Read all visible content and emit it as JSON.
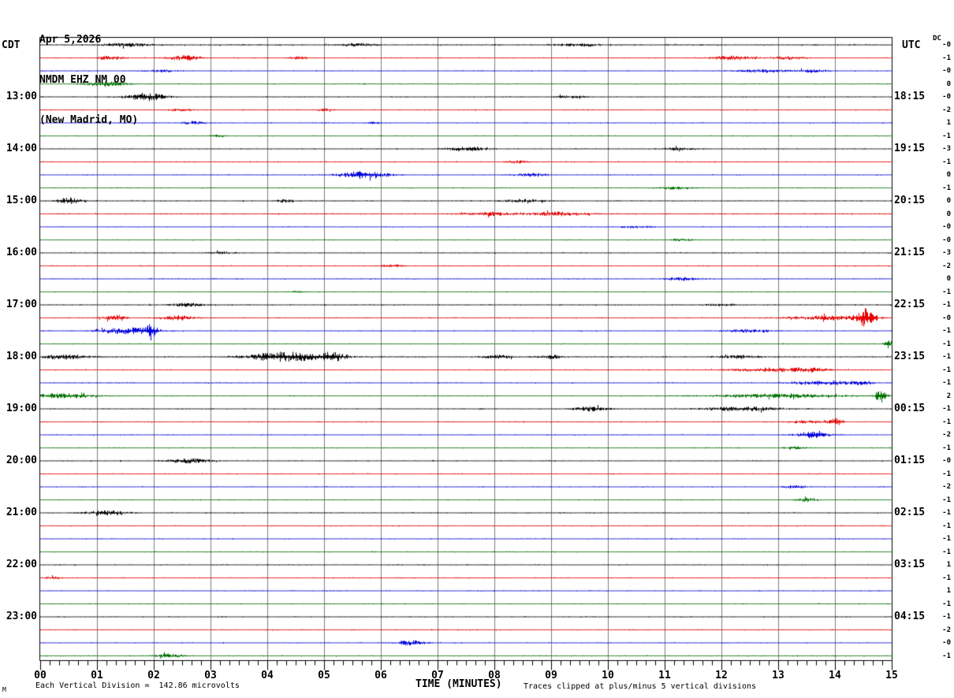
{
  "title": {
    "date": "Apr 5,2026",
    "station": "NMDM EHZ NM 00",
    "location": "(New Madrid, MO)"
  },
  "axis": {
    "left_timezone": "CDT",
    "right_timezone": "UTC",
    "dc_label": "DC",
    "x_title": "TIME (MINUTES)",
    "x_ticks": [
      "00",
      "01",
      "02",
      "03",
      "04",
      "05",
      "06",
      "07",
      "08",
      "09",
      "10",
      "11",
      "12",
      "13",
      "14",
      "15"
    ],
    "left_times": [
      {
        "row": 5,
        "label": "13:00"
      },
      {
        "row": 9,
        "label": "14:00"
      },
      {
        "row": 13,
        "label": "15:00"
      },
      {
        "row": 17,
        "label": "16:00"
      },
      {
        "row": 21,
        "label": "17:00"
      },
      {
        "row": 25,
        "label": "18:00"
      },
      {
        "row": 29,
        "label": "19:00"
      },
      {
        "row": 33,
        "label": "20:00"
      },
      {
        "row": 37,
        "label": "21:00"
      },
      {
        "row": 41,
        "label": "22:00"
      },
      {
        "row": 45,
        "label": "23:00"
      }
    ],
    "right_times": [
      {
        "row": 5,
        "label": "18:15"
      },
      {
        "row": 9,
        "label": "19:15"
      },
      {
        "row": 13,
        "label": "20:15"
      },
      {
        "row": 17,
        "label": "21:15"
      },
      {
        "row": 21,
        "label": "22:15"
      },
      {
        "row": 25,
        "label": "23:15"
      },
      {
        "row": 29,
        "label": "00:15"
      },
      {
        "row": 33,
        "label": "01:15"
      },
      {
        "row": 37,
        "label": "02:15"
      },
      {
        "row": 41,
        "label": "03:15"
      },
      {
        "row": 45,
        "label": "04:15"
      }
    ]
  },
  "footer": {
    "mark": "M",
    "scale_note": "Each Vertical Division =  142.86 microvolts",
    "clip_note": "Traces clipped at plus/minus 5 vertical divisions"
  },
  "colors": {
    "black": "#000000",
    "red": "#e60000",
    "blue": "#0000dd",
    "green": "#007000",
    "grid": "#7d7d7d",
    "frame": "#000000",
    "background": "#ffffff"
  },
  "chart_data": {
    "type": "line",
    "subtype": "helicorder-seismogram",
    "title": "NMDM EHZ NM 00 (New Madrid, MO) Apr 5,2026",
    "xlabel": "TIME (MINUTES)",
    "x_axis": {
      "min": 0,
      "max": 15,
      "major_tick_minutes": 1,
      "minor_ticks_per_major": 6
    },
    "row_layout": {
      "row_count": 48,
      "minutes_per_row": 15,
      "first_row_start_cdt": "12:00",
      "utc_offset_hours": 5,
      "color_cycle": [
        "black",
        "red",
        "blue",
        "green"
      ]
    },
    "clip_divisions": 5,
    "microvolts_per_division": 142.86,
    "events_format": "[minute_in_row, width_minutes, amplitude_px]",
    "rows": [
      {
        "color": "black",
        "dc": "-0",
        "amp": 1.3,
        "events": [
          [
            1.5,
            0.3,
            2
          ],
          [
            5.6,
            0.2,
            2
          ],
          [
            9.5,
            0.3,
            1.5
          ]
        ]
      },
      {
        "color": "red",
        "dc": "-1",
        "amp": 1.0,
        "events": [
          [
            1.25,
            0.15,
            2.5
          ],
          [
            2.55,
            0.2,
            3
          ],
          [
            4.55,
            0.1,
            2
          ],
          [
            12.2,
            0.3,
            2.5
          ],
          [
            13.2,
            0.2,
            2
          ]
        ]
      },
      {
        "color": "blue",
        "dc": "-0",
        "amp": 1.0,
        "events": [
          [
            2.1,
            0.2,
            1.5
          ],
          [
            12.7,
            0.3,
            2
          ],
          [
            13.6,
            0.2,
            2
          ]
        ]
      },
      {
        "color": "green",
        "dc": "0",
        "amp": 0.9,
        "events": [
          [
            1.15,
            0.25,
            3.5
          ]
        ]
      },
      {
        "color": "black",
        "dc": "-0",
        "amp": 1.1,
        "events": [
          [
            1.85,
            0.25,
            5
          ],
          [
            9.3,
            0.2,
            1.5
          ]
        ]
      },
      {
        "color": "red",
        "dc": "-2",
        "amp": 1.0,
        "events": [
          [
            2.5,
            0.15,
            1.5
          ],
          [
            5.0,
            0.1,
            1.5
          ]
        ]
      },
      {
        "color": "blue",
        "dc": "1",
        "amp": 0.9,
        "events": [
          [
            2.7,
            0.15,
            2
          ],
          [
            5.9,
            0.1,
            1.5
          ]
        ]
      },
      {
        "color": "green",
        "dc": "-1",
        "amp": 0.8,
        "events": [
          [
            3.1,
            0.1,
            1.2
          ]
        ]
      },
      {
        "color": "black",
        "dc": "-3",
        "amp": 1.1,
        "events": [
          [
            7.5,
            0.25,
            2.5
          ],
          [
            11.2,
            0.2,
            1.5
          ]
        ]
      },
      {
        "color": "red",
        "dc": "-1",
        "amp": 1.0,
        "events": [
          [
            8.4,
            0.15,
            1.5
          ]
        ]
      },
      {
        "color": "blue",
        "dc": "0",
        "amp": 0.9,
        "events": [
          [
            5.7,
            0.3,
            5
          ],
          [
            8.65,
            0.2,
            2.5
          ]
        ]
      },
      {
        "color": "green",
        "dc": "-1",
        "amp": 0.8,
        "events": [
          [
            11.2,
            0.2,
            2
          ]
        ]
      },
      {
        "color": "black",
        "dc": "0",
        "amp": 1.2,
        "events": [
          [
            0.5,
            0.15,
            4
          ],
          [
            4.3,
            0.1,
            2
          ],
          [
            8.5,
            0.25,
            2
          ]
        ]
      },
      {
        "color": "red",
        "dc": "0",
        "amp": 1.3,
        "events": [
          [
            7.9,
            0.3,
            2
          ],
          [
            9.1,
            0.35,
            2.5
          ]
        ]
      },
      {
        "color": "blue",
        "dc": "-0",
        "amp": 0.9,
        "events": [
          [
            10.5,
            0.2,
            1.5
          ]
        ]
      },
      {
        "color": "green",
        "dc": "-0",
        "amp": 0.8,
        "events": [
          [
            11.3,
            0.15,
            1.5
          ]
        ]
      },
      {
        "color": "black",
        "dc": "-3",
        "amp": 1.0,
        "events": [
          [
            3.2,
            0.2,
            1.5
          ]
        ]
      },
      {
        "color": "red",
        "dc": "-2",
        "amp": 1.0,
        "events": [
          [
            6.2,
            0.15,
            1.5
          ]
        ]
      },
      {
        "color": "blue",
        "dc": "0",
        "amp": 1.1,
        "events": [
          [
            11.3,
            0.2,
            2
          ]
        ]
      },
      {
        "color": "green",
        "dc": "-1",
        "amp": 0.8,
        "events": [
          [
            4.5,
            0.1,
            1.2
          ]
        ]
      },
      {
        "color": "black",
        "dc": "-1",
        "amp": 1.2,
        "events": [
          [
            2.6,
            0.2,
            2
          ],
          [
            12.0,
            0.2,
            1.5
          ]
        ]
      },
      {
        "color": "red",
        "dc": "-0",
        "amp": 1.1,
        "events": [
          [
            1.3,
            0.15,
            3
          ],
          [
            2.45,
            0.2,
            3
          ],
          [
            13.9,
            0.5,
            2.5
          ],
          [
            14.55,
            0.1,
            11
          ]
        ]
      },
      {
        "color": "blue",
        "dc": "-1",
        "amp": 1.0,
        "events": [
          [
            1.55,
            0.35,
            4
          ],
          [
            1.95,
            0.07,
            7
          ],
          [
            12.5,
            0.3,
            2
          ]
        ]
      },
      {
        "color": "green",
        "dc": "-1",
        "amp": 0.9,
        "events": [
          [
            14.95,
            0.07,
            4
          ]
        ]
      },
      {
        "color": "black",
        "dc": "-1",
        "amp": 1.3,
        "events": [
          [
            0.45,
            0.3,
            3
          ],
          [
            4.3,
            0.45,
            6
          ],
          [
            5.15,
            0.2,
            5
          ],
          [
            8.05,
            0.2,
            2
          ],
          [
            9.0,
            0.15,
            2
          ],
          [
            12.3,
            0.25,
            2
          ]
        ]
      },
      {
        "color": "red",
        "dc": "-1",
        "amp": 1.0,
        "events": [
          [
            12.9,
            0.5,
            2.5
          ],
          [
            13.6,
            0.2,
            2
          ]
        ]
      },
      {
        "color": "blue",
        "dc": "-1",
        "amp": 1.0,
        "events": [
          [
            13.8,
            0.4,
            3
          ],
          [
            14.5,
            0.1,
            3
          ]
        ]
      },
      {
        "color": "green",
        "dc": "2",
        "amp": 1.0,
        "events": [
          [
            0.4,
            0.4,
            3
          ],
          [
            13.0,
            0.8,
            2.5
          ],
          [
            14.8,
            0.06,
            9
          ]
        ]
      },
      {
        "color": "black",
        "dc": "-1",
        "amp": 1.1,
        "events": [
          [
            9.7,
            0.2,
            3
          ],
          [
            12.4,
            0.5,
            2.5
          ]
        ]
      },
      {
        "color": "red",
        "dc": "-1",
        "amp": 1.0,
        "events": [
          [
            13.5,
            0.2,
            2
          ],
          [
            14.0,
            0.08,
            5
          ]
        ]
      },
      {
        "color": "blue",
        "dc": "-2",
        "amp": 1.0,
        "events": [
          [
            13.6,
            0.2,
            4
          ]
        ]
      },
      {
        "color": "green",
        "dc": "-1",
        "amp": 0.8,
        "events": [
          [
            13.3,
            0.15,
            1.5
          ]
        ]
      },
      {
        "color": "black",
        "dc": "-0",
        "amp": 1.1,
        "events": [
          [
            2.6,
            0.25,
            3
          ]
        ]
      },
      {
        "color": "red",
        "dc": "-1",
        "amp": 1.0,
        "events": []
      },
      {
        "color": "blue",
        "dc": "-2",
        "amp": 0.9,
        "events": [
          [
            13.3,
            0.15,
            2
          ]
        ]
      },
      {
        "color": "green",
        "dc": "-1",
        "amp": 0.8,
        "events": [
          [
            13.5,
            0.12,
            2.5
          ]
        ]
      },
      {
        "color": "black",
        "dc": "-1",
        "amp": 1.1,
        "events": [
          [
            1.15,
            0.25,
            3
          ]
        ]
      },
      {
        "color": "red",
        "dc": "-1",
        "amp": 1.0,
        "events": []
      },
      {
        "color": "blue",
        "dc": "-1",
        "amp": 0.9,
        "events": []
      },
      {
        "color": "green",
        "dc": "-1",
        "amp": 0.8,
        "events": []
      },
      {
        "color": "black",
        "dc": "1",
        "amp": 1.0,
        "events": []
      },
      {
        "color": "red",
        "dc": "-1",
        "amp": 1.0,
        "events": [
          [
            0.2,
            0.1,
            2
          ]
        ]
      },
      {
        "color": "blue",
        "dc": "1",
        "amp": 0.9,
        "events": []
      },
      {
        "color": "green",
        "dc": "-1",
        "amp": 0.8,
        "events": []
      },
      {
        "color": "black",
        "dc": "-1",
        "amp": 1.0,
        "events": []
      },
      {
        "color": "red",
        "dc": "-2",
        "amp": 1.0,
        "events": []
      },
      {
        "color": "blue",
        "dc": "-0",
        "amp": 0.9,
        "events": [
          [
            6.5,
            0.2,
            3
          ]
        ]
      },
      {
        "color": "green",
        "dc": "-1",
        "amp": 0.8,
        "events": [
          [
            2.25,
            0.2,
            2.5
          ]
        ]
      }
    ]
  }
}
